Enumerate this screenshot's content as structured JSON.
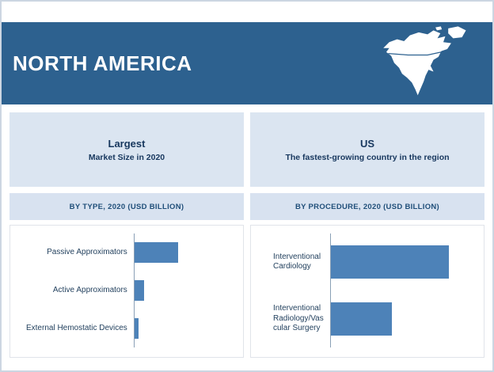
{
  "header": {
    "title": "NORTH AMERICA"
  },
  "icons": {
    "map": "north-america-silhouette"
  },
  "highlight_cards": [
    {
      "title": "Largest",
      "subtitle": "Market Size in 2020"
    },
    {
      "title": "US",
      "subtitle": "The fastest-growing country in the region"
    }
  ],
  "section_headers": [
    "BY TYPE, 2020 (USD BILLION)",
    "BY PROCEDURE, 2020 (USD BILLION)"
  ],
  "chart_data": [
    {
      "type": "bar",
      "orientation": "horizontal",
      "title": "BY TYPE, 2020 (USD BILLION)",
      "categories": [
        "Passive Approximators",
        "Active Approximators",
        "External Hemostatic Devices"
      ],
      "values": [
        40,
        9,
        4
      ],
      "value_axis": "unlabeled; values are relative bar lengths as % of plot width",
      "grid": false,
      "legend": "none"
    },
    {
      "type": "bar",
      "orientation": "horizontal",
      "title": "BY PROCEDURE, 2020 (USD BILLION)",
      "categories": [
        "Interventional Cardiology",
        "Interventional Radiology/Vascular Surgery"
      ],
      "values": [
        77,
        40
      ],
      "value_axis": "unlabeled; values are relative bar lengths as % of plot width",
      "grid": false,
      "legend": "none"
    }
  ],
  "colors": {
    "header_bg": "#2d618f",
    "panel_bg": "#dbe5f1",
    "section_bg": "#d8e2f0",
    "bar": "#4d82b8",
    "accent_text": "#1f4e79",
    "title_text": "#ffffff"
  }
}
